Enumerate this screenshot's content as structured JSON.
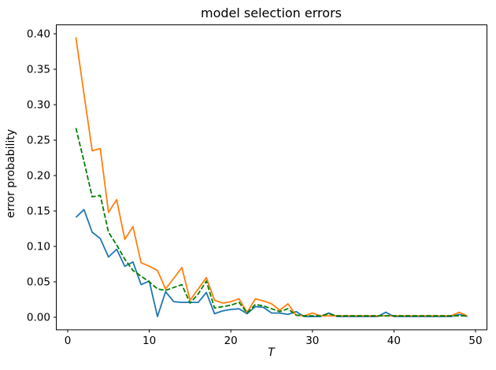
{
  "figure": {
    "title": "model selection errors",
    "xlabel": "T",
    "ylabel": "error probability"
  },
  "chart_data": {
    "type": "line",
    "title": "model selection errors",
    "xlabel": "T",
    "ylabel": "error probability",
    "grid": false,
    "legend": null,
    "xlim": [
      -1.4,
      51.4
    ],
    "ylim": [
      -0.0177,
      0.4127
    ],
    "xticks": [
      0,
      10,
      20,
      30,
      40,
      50
    ],
    "xtick_labels": [
      "0",
      "10",
      "20",
      "30",
      "40",
      "50"
    ],
    "yticks": [
      0.0,
      0.05,
      0.1,
      0.15,
      0.2,
      0.25,
      0.3,
      0.35,
      0.4
    ],
    "ytick_labels": [
      "0.00",
      "0.05",
      "0.10",
      "0.15",
      "0.20",
      "0.25",
      "0.30",
      "0.35",
      "0.40"
    ],
    "x": [
      1,
      2,
      3,
      4,
      5,
      6,
      7,
      8,
      9,
      10,
      11,
      12,
      13,
      14,
      15,
      16,
      17,
      18,
      19,
      20,
      21,
      22,
      23,
      24,
      25,
      26,
      27,
      28,
      29,
      30,
      31,
      32,
      33,
      34,
      35,
      36,
      37,
      38,
      39,
      40,
      41,
      42,
      43,
      44,
      45,
      46,
      47,
      48,
      49
    ],
    "series": [
      {
        "name": "series-blue",
        "color": "#1f77b4",
        "style": "solid",
        "values": [
          0.141,
          0.152,
          0.12,
          0.111,
          0.085,
          0.096,
          0.072,
          0.078,
          0.046,
          0.051,
          0.001,
          0.036,
          0.022,
          0.021,
          0.021,
          0.021,
          0.035,
          0.005,
          0.009,
          0.011,
          0.012,
          0.005,
          0.015,
          0.014,
          0.006,
          0.006,
          0.004,
          0.008,
          0.001,
          0.001,
          0.001,
          0.006,
          0.001,
          0.001,
          0.001,
          0.001,
          0.001,
          0.001,
          0.007,
          0.001,
          0.001,
          0.001,
          0.001,
          0.001,
          0.001,
          0.001,
          0.001,
          0.004,
          0.001
        ]
      },
      {
        "name": "series-orange",
        "color": "#ff7f0e",
        "style": "solid",
        "values": [
          0.395,
          0.315,
          0.235,
          0.238,
          0.148,
          0.166,
          0.11,
          0.128,
          0.077,
          0.072,
          0.066,
          0.04,
          0.055,
          0.07,
          0.024,
          0.04,
          0.056,
          0.024,
          0.02,
          0.022,
          0.026,
          0.007,
          0.026,
          0.023,
          0.019,
          0.01,
          0.019,
          0.003,
          0.002,
          0.006,
          0.002,
          0.002,
          0.002,
          0.002,
          0.002,
          0.002,
          0.002,
          0.002,
          0.002,
          0.002,
          0.002,
          0.002,
          0.002,
          0.002,
          0.002,
          0.002,
          0.002,
          0.007,
          0.002
        ]
      },
      {
        "name": "series-green",
        "color": "#008000",
        "style": "dashed",
        "values": [
          0.267,
          0.22,
          0.17,
          0.172,
          0.12,
          0.102,
          0.082,
          0.066,
          0.058,
          0.05,
          0.04,
          0.038,
          0.042,
          0.046,
          0.02,
          0.033,
          0.051,
          0.013,
          0.015,
          0.017,
          0.021,
          0.006,
          0.018,
          0.016,
          0.012,
          0.008,
          0.012,
          0.003,
          0.002,
          0.002,
          0.002,
          0.005,
          0.002,
          0.002,
          0.002,
          0.002,
          0.002,
          0.002,
          0.002,
          0.002,
          0.002,
          0.002,
          0.002,
          0.002,
          0.002,
          0.002,
          0.002,
          0.002,
          0.002
        ]
      }
    ]
  }
}
